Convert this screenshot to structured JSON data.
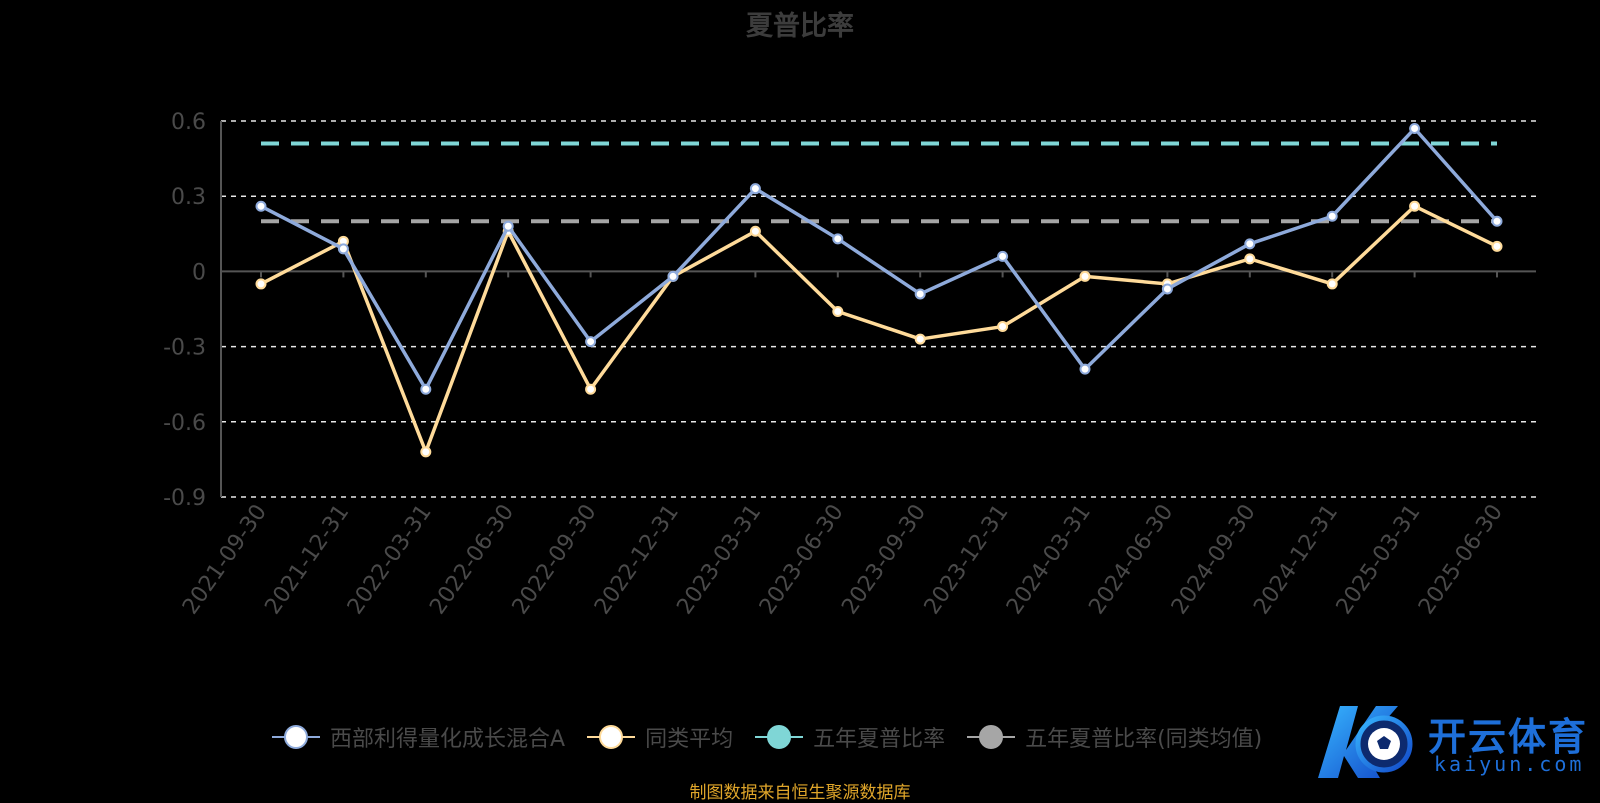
{
  "title": "夏普比率",
  "source_note": "制图数据来自恒生聚源数据库",
  "logo": {
    "brand": "开云体育",
    "domain": "kaiyun.com"
  },
  "colors": {
    "fund": "#8eaadb",
    "peer": "#ffdb9a",
    "five_year": "#7fd6d6",
    "five_year_peer": "#a6a6a6",
    "grid": "#e8e8e8",
    "axis_text": "#4a4a4a"
  },
  "chart_data": {
    "type": "line",
    "title": "夏普比率",
    "x": [
      "2021-09-30",
      "2021-12-31",
      "2022-03-31",
      "2022-06-30",
      "2022-09-30",
      "2022-12-31",
      "2023-03-31",
      "2023-06-30",
      "2023-09-30",
      "2023-12-31",
      "2024-03-31",
      "2024-06-30",
      "2024-09-30",
      "2024-12-31",
      "2025-03-31",
      "2025-06-30"
    ],
    "ylim": [
      -0.9,
      0.6
    ],
    "yticks": [
      0.6,
      0.3,
      0,
      -0.3,
      -0.6,
      -0.9
    ],
    "ytick_labels": [
      "0.6",
      "0.3",
      "0",
      "-0.3",
      "-0.6",
      "-0.9"
    ],
    "grid": true,
    "legend_position": "bottom",
    "series": [
      {
        "name": "西部利得量化成长混合A",
        "values": [
          0.26,
          0.09,
          -0.47,
          0.18,
          -0.28,
          -0.02,
          0.33,
          0.13,
          -0.09,
          0.06,
          -0.39,
          -0.07,
          0.11,
          0.22,
          0.57,
          0.2
        ]
      },
      {
        "name": "同类平均",
        "values": [
          -0.05,
          0.12,
          -0.72,
          0.16,
          -0.47,
          -0.02,
          0.16,
          -0.16,
          -0.27,
          -0.22,
          -0.02,
          -0.05,
          0.05,
          -0.05,
          0.26,
          0.1
        ]
      },
      {
        "name": "五年夏普比率",
        "values": [
          0.51,
          0.51,
          0.51,
          0.51,
          0.51,
          0.51,
          0.51,
          0.51,
          0.51,
          0.51,
          0.51,
          0.51,
          0.51,
          0.51,
          0.51,
          0.51
        ]
      },
      {
        "name": "五年夏普比率(同类均值)",
        "values": [
          0.2,
          0.2,
          0.2,
          0.2,
          0.2,
          0.2,
          0.2,
          0.2,
          0.2,
          0.2,
          0.2,
          0.2,
          0.2,
          0.2,
          0.2,
          0.2
        ]
      }
    ]
  }
}
